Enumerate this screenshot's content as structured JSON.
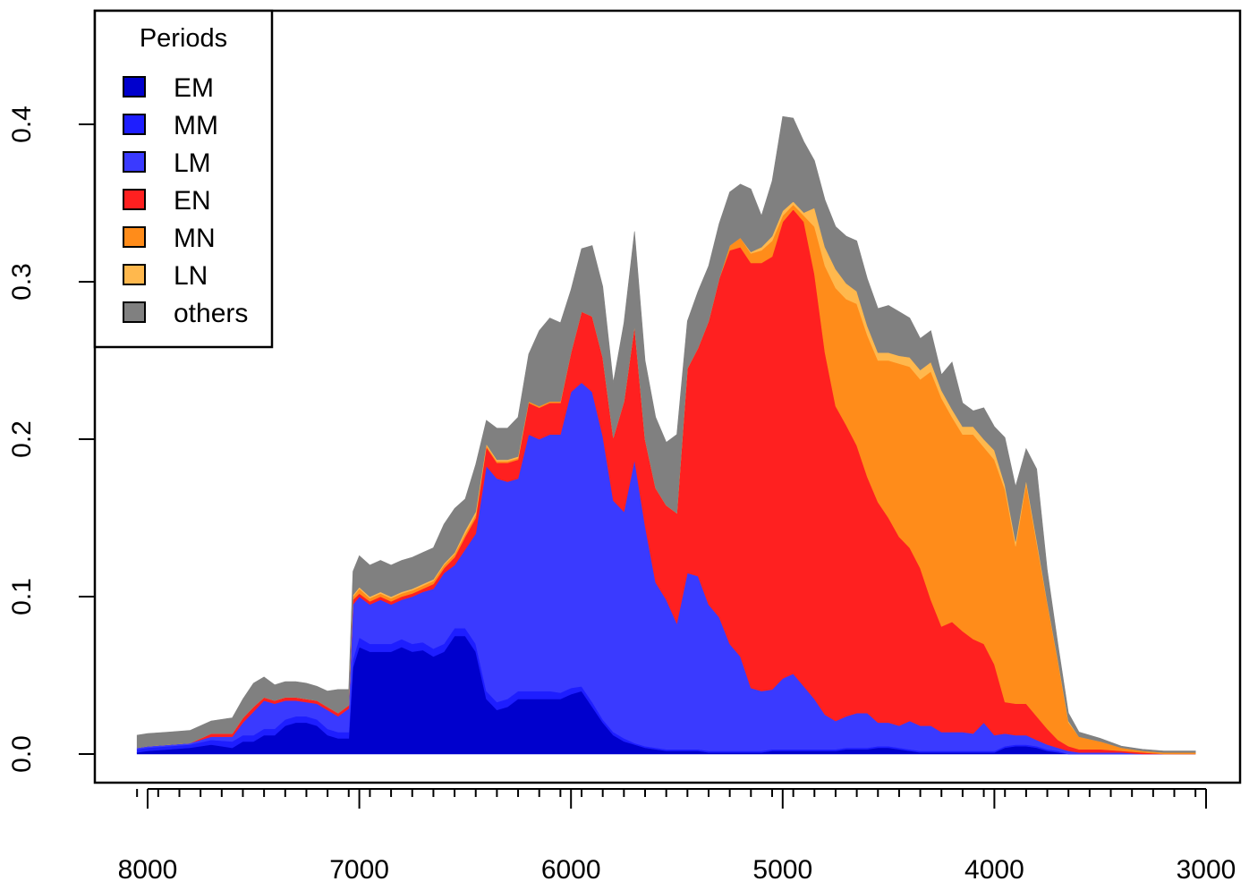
{
  "chart_data": {
    "type": "area",
    "stacked": true,
    "x_reversed": true,
    "xlim": [
      8000,
      3000
    ],
    "ylim": [
      0,
      0.45
    ],
    "x_ticks": [
      "8000",
      "7000",
      "6000",
      "5000",
      "4000",
      "3000"
    ],
    "y_ticks": [
      "0.0",
      "0.1",
      "0.2",
      "0.3",
      "0.4"
    ],
    "legend": {
      "title": "Periods",
      "position": "top-left"
    },
    "x": [
      8050,
      8000,
      7900,
      7800,
      7700,
      7600,
      7550,
      7500,
      7450,
      7400,
      7350,
      7300,
      7250,
      7200,
      7150,
      7100,
      7050,
      7030,
      7000,
      6950,
      6900,
      6850,
      6800,
      6750,
      6700,
      6650,
      6600,
      6550,
      6500,
      6450,
      6400,
      6350,
      6300,
      6250,
      6200,
      6150,
      6100,
      6050,
      6000,
      5950,
      5900,
      5850,
      5800,
      5750,
      5700,
      5650,
      5600,
      5550,
      5500,
      5450,
      5400,
      5350,
      5300,
      5250,
      5200,
      5150,
      5100,
      5050,
      5000,
      4950,
      4900,
      4850,
      4800,
      4750,
      4700,
      4650,
      4600,
      4550,
      4500,
      4450,
      4400,
      4350,
      4300,
      4250,
      4200,
      4150,
      4100,
      4050,
      4000,
      3950,
      3900,
      3850,
      3800,
      3750,
      3700,
      3650,
      3600,
      3500,
      3400,
      3300,
      3200,
      3100,
      3050
    ],
    "series": [
      {
        "name": "EM",
        "color": "#0000CD",
        "values": [
          0.001,
          0.002,
          0.003,
          0.004,
          0.006,
          0.004,
          0.008,
          0.008,
          0.012,
          0.012,
          0.018,
          0.02,
          0.02,
          0.018,
          0.012,
          0.01,
          0.01,
          0.055,
          0.068,
          0.065,
          0.065,
          0.065,
          0.068,
          0.065,
          0.066,
          0.062,
          0.065,
          0.075,
          0.075,
          0.065,
          0.035,
          0.028,
          0.03,
          0.035,
          0.035,
          0.035,
          0.035,
          0.035,
          0.038,
          0.04,
          0.03,
          0.02,
          0.012,
          0.008,
          0.006,
          0.004,
          0.003,
          0.002,
          0.002,
          0.002,
          0.002,
          0.001,
          0.001,
          0.001,
          0.001,
          0.001,
          0.001,
          0.002,
          0.002,
          0.002,
          0.002,
          0.002,
          0.002,
          0.002,
          0.003,
          0.003,
          0.003,
          0.004,
          0.004,
          0.003,
          0.002,
          0.001,
          0.001,
          0.001,
          0.001,
          0.001,
          0.001,
          0.001,
          0.001,
          0.004,
          0.005,
          0.005,
          0.004,
          0.002,
          0.001,
          0.0,
          0.0,
          0.0,
          0.0,
          0.0,
          0.0,
          0.0,
          0.0
        ]
      },
      {
        "name": "MM",
        "color": "#1E1EFF",
        "values": [
          0.002,
          0.002,
          0.002,
          0.002,
          0.003,
          0.004,
          0.004,
          0.004,
          0.004,
          0.004,
          0.004,
          0.004,
          0.004,
          0.004,
          0.004,
          0.004,
          0.004,
          0.005,
          0.006,
          0.005,
          0.005,
          0.005,
          0.005,
          0.005,
          0.005,
          0.005,
          0.005,
          0.005,
          0.005,
          0.005,
          0.005,
          0.005,
          0.005,
          0.005,
          0.005,
          0.005,
          0.005,
          0.004,
          0.004,
          0.003,
          0.003,
          0.002,
          0.002,
          0.002,
          0.001,
          0.001,
          0.001,
          0.001,
          0.001,
          0.001,
          0.001,
          0.001,
          0.001,
          0.001,
          0.001,
          0.001,
          0.001,
          0.001,
          0.001,
          0.001,
          0.001,
          0.001,
          0.001,
          0.001,
          0.001,
          0.001,
          0.001,
          0.001,
          0.001,
          0.001,
          0.001,
          0.001,
          0.001,
          0.001,
          0.001,
          0.001,
          0.001,
          0.001,
          0.001,
          0.001,
          0.001,
          0.001,
          0.001,
          0.001,
          0.001,
          0.0,
          0.0,
          0.0,
          0.0,
          0.0,
          0.0,
          0.0,
          0.0
        ]
      },
      {
        "name": "LM",
        "color": "#3A3AFF",
        "values": [
          0.001,
          0.001,
          0.001,
          0.001,
          0.002,
          0.003,
          0.008,
          0.015,
          0.018,
          0.016,
          0.012,
          0.01,
          0.009,
          0.01,
          0.012,
          0.01,
          0.015,
          0.035,
          0.026,
          0.025,
          0.028,
          0.025,
          0.025,
          0.03,
          0.032,
          0.038,
          0.045,
          0.04,
          0.05,
          0.07,
          0.143,
          0.142,
          0.138,
          0.135,
          0.163,
          0.16,
          0.163,
          0.164,
          0.188,
          0.193,
          0.197,
          0.18,
          0.147,
          0.144,
          0.18,
          0.14,
          0.105,
          0.095,
          0.08,
          0.112,
          0.11,
          0.093,
          0.085,
          0.068,
          0.06,
          0.04,
          0.038,
          0.038,
          0.045,
          0.048,
          0.04,
          0.032,
          0.022,
          0.018,
          0.02,
          0.022,
          0.022,
          0.015,
          0.015,
          0.014,
          0.018,
          0.016,
          0.016,
          0.012,
          0.012,
          0.012,
          0.011,
          0.018,
          0.01,
          0.008,
          0.006,
          0.006,
          0.004,
          0.003,
          0.002,
          0.002,
          0.001,
          0.001,
          0.001,
          0.0,
          0.0,
          0.0,
          0.0
        ]
      },
      {
        "name": "EN",
        "color": "#FF2020",
        "values": [
          0.0,
          0.0,
          0.0,
          0.0,
          0.002,
          0.002,
          0.003,
          0.003,
          0.002,
          0.002,
          0.002,
          0.002,
          0.002,
          0.002,
          0.002,
          0.002,
          0.002,
          0.003,
          0.002,
          0.002,
          0.002,
          0.002,
          0.002,
          0.002,
          0.002,
          0.003,
          0.003,
          0.005,
          0.008,
          0.01,
          0.012,
          0.01,
          0.012,
          0.012,
          0.02,
          0.02,
          0.02,
          0.02,
          0.025,
          0.045,
          0.048,
          0.05,
          0.04,
          0.07,
          0.085,
          0.055,
          0.06,
          0.06,
          0.07,
          0.13,
          0.145,
          0.18,
          0.215,
          0.25,
          0.26,
          0.27,
          0.272,
          0.275,
          0.29,
          0.295,
          0.295,
          0.27,
          0.23,
          0.2,
          0.185,
          0.17,
          0.15,
          0.14,
          0.13,
          0.12,
          0.11,
          0.1,
          0.08,
          0.067,
          0.07,
          0.064,
          0.06,
          0.05,
          0.045,
          0.02,
          0.02,
          0.02,
          0.015,
          0.01,
          0.005,
          0.003,
          0.002,
          0.002,
          0.001,
          0.001,
          0.0,
          0.0,
          0.0
        ]
      },
      {
        "name": "MN",
        "color": "#FF8C1A",
        "values": [
          0.0,
          0.0,
          0.0,
          0.0,
          0.0,
          0.0,
          0.0,
          0.0,
          0.0,
          0.0,
          0.0,
          0.0,
          0.0,
          0.0,
          0.0,
          0.0,
          0.0,
          0.002,
          0.003,
          0.002,
          0.002,
          0.002,
          0.002,
          0.002,
          0.002,
          0.002,
          0.002,
          0.002,
          0.002,
          0.002,
          0.001,
          0.001,
          0.001,
          0.001,
          0.001,
          0.001,
          0.001,
          0.001,
          0.0,
          0.0,
          0.0,
          0.0,
          0.0,
          0.0,
          0.0,
          0.0,
          0.0,
          0.0,
          0.0,
          0.0,
          0.0,
          0.0,
          0.0,
          0.003,
          0.006,
          0.006,
          0.008,
          0.01,
          0.004,
          0.003,
          0.004,
          0.03,
          0.055,
          0.075,
          0.08,
          0.09,
          0.09,
          0.09,
          0.1,
          0.11,
          0.115,
          0.12,
          0.145,
          0.145,
          0.13,
          0.125,
          0.13,
          0.125,
          0.13,
          0.135,
          0.1,
          0.14,
          0.11,
          0.08,
          0.05,
          0.015,
          0.008,
          0.005,
          0.002,
          0.001,
          0.001,
          0.001,
          0.001
        ]
      },
      {
        "name": "LN",
        "color": "#FFB84D",
        "values": [
          0.0,
          0.0,
          0.0,
          0.0,
          0.0,
          0.0,
          0.0,
          0.0,
          0.0,
          0.0,
          0.0,
          0.0,
          0.0,
          0.0,
          0.0,
          0.0,
          0.0,
          0.001,
          0.001,
          0.001,
          0.001,
          0.001,
          0.001,
          0.001,
          0.001,
          0.001,
          0.001,
          0.001,
          0.002,
          0.002,
          0.001,
          0.001,
          0.001,
          0.001,
          0.0,
          0.0,
          0.0,
          0.0,
          0.0,
          0.0,
          0.0,
          0.0,
          0.0,
          0.0,
          0.0,
          0.0,
          0.0,
          0.0,
          0.0,
          0.0,
          0.0,
          0.0,
          0.0,
          0.0,
          0.0,
          0.001,
          0.002,
          0.003,
          0.003,
          0.002,
          0.002,
          0.012,
          0.012,
          0.012,
          0.01,
          0.008,
          0.006,
          0.005,
          0.005,
          0.005,
          0.006,
          0.006,
          0.006,
          0.005,
          0.005,
          0.005,
          0.005,
          0.005,
          0.006,
          0.003,
          0.003,
          0.002,
          0.002,
          0.001,
          0.001,
          0.001,
          0.0,
          0.0,
          0.0,
          0.0,
          0.0,
          0.0,
          0.0
        ]
      },
      {
        "name": "others",
        "color": "#808080",
        "values": [
          0.008,
          0.008,
          0.008,
          0.008,
          0.008,
          0.01,
          0.012,
          0.015,
          0.013,
          0.01,
          0.01,
          0.01,
          0.01,
          0.009,
          0.01,
          0.015,
          0.01,
          0.015,
          0.02,
          0.02,
          0.02,
          0.02,
          0.02,
          0.02,
          0.02,
          0.02,
          0.025,
          0.028,
          0.02,
          0.03,
          0.015,
          0.02,
          0.02,
          0.025,
          0.03,
          0.048,
          0.053,
          0.05,
          0.04,
          0.04,
          0.045,
          0.045,
          0.035,
          0.05,
          0.06,
          0.05,
          0.045,
          0.04,
          0.05,
          0.03,
          0.036,
          0.035,
          0.035,
          0.034,
          0.034,
          0.04,
          0.02,
          0.035,
          0.06,
          0.053,
          0.045,
          0.03,
          0.03,
          0.027,
          0.03,
          0.032,
          0.03,
          0.028,
          0.03,
          0.028,
          0.025,
          0.02,
          0.02,
          0.01,
          0.03,
          0.015,
          0.01,
          0.02,
          0.015,
          0.03,
          0.035,
          0.02,
          0.045,
          0.02,
          0.01,
          0.005,
          0.003,
          0.002,
          0.001,
          0.001,
          0.001,
          0.001,
          0.001
        ]
      }
    ]
  }
}
